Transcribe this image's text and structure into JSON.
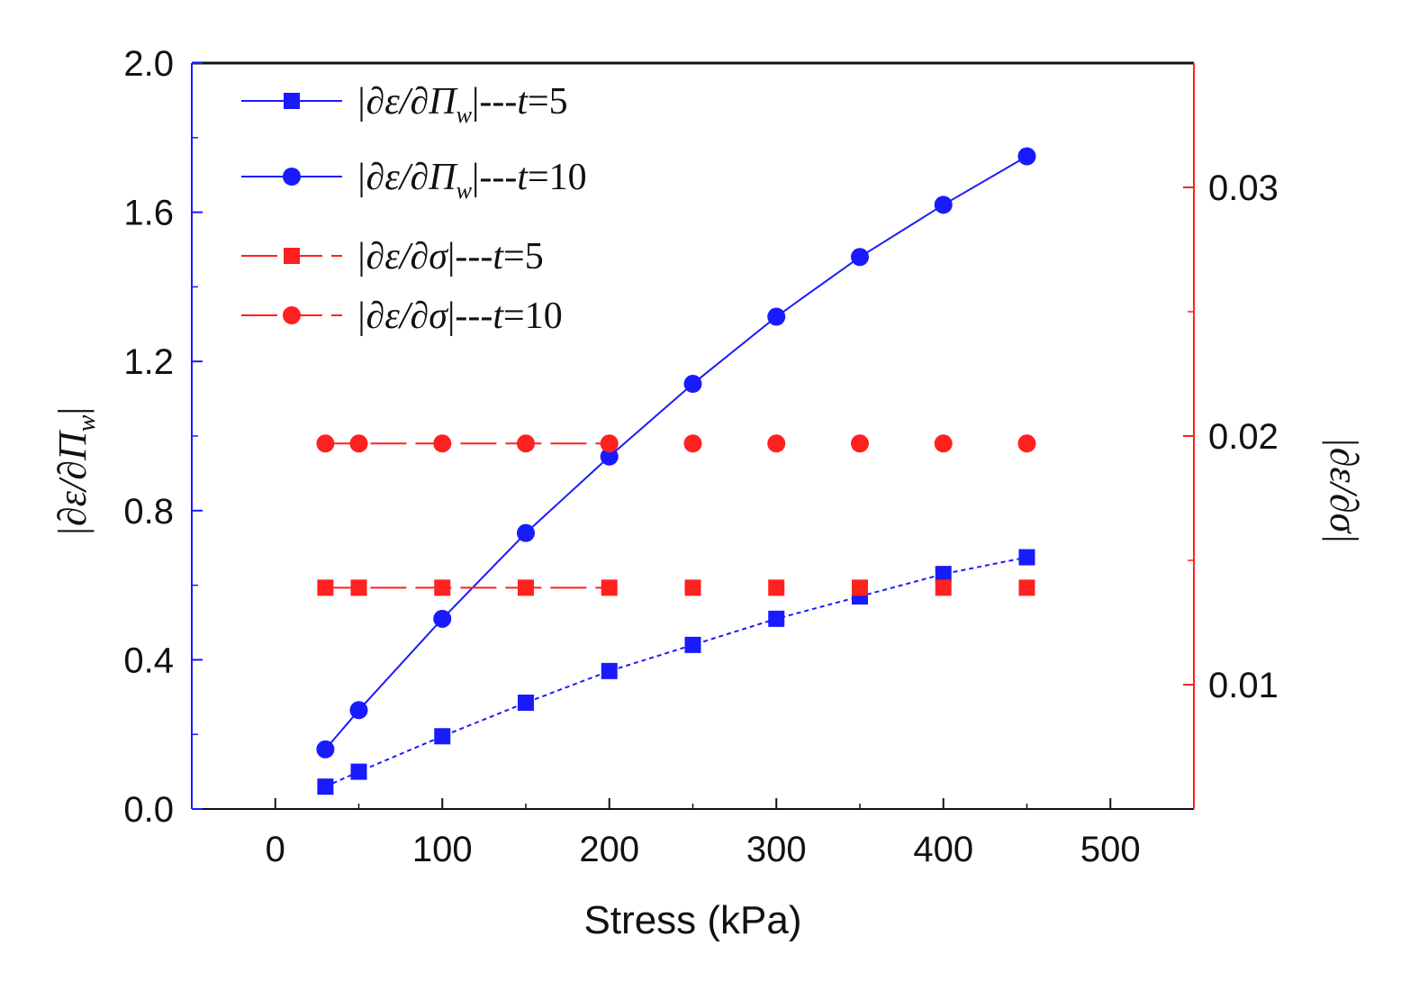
{
  "chart_data": {
    "type": "line",
    "x": [
      30,
      50,
      100,
      150,
      200,
      250,
      300,
      350,
      400,
      450
    ],
    "xlabel": "Stress (kPa)",
    "xlim": [
      -50,
      550
    ],
    "xticks": [
      0,
      100,
      200,
      300,
      400,
      500
    ],
    "xtick_labels": [
      "0",
      "100",
      "200",
      "300",
      "400",
      "500"
    ],
    "left_axis": {
      "label": "|∂ε/∂Π_w|",
      "label_main": "|∂ε/∂Π",
      "label_sub": "w",
      "label_end": "|",
      "ylim": [
        0,
        2.0
      ],
      "ticks": [
        0.0,
        0.4,
        0.8,
        1.2,
        1.6,
        2.0
      ],
      "tick_labels": [
        "0.0",
        "0.4",
        "0.8",
        "1.2",
        "1.6",
        "2.0"
      ],
      "color": "#1a1aff"
    },
    "right_axis": {
      "label": "|∂ε/∂σ|",
      "ylim": [
        0.005,
        0.035
      ],
      "ticks": [
        0.01,
        0.02,
        0.03
      ],
      "tick_labels": [
        "0.01",
        "0.02",
        "0.03"
      ],
      "color": "#ff2020"
    },
    "series": [
      {
        "name": "|∂ε/∂Π_w|---t=5",
        "legend_pre": "|∂ε/∂Π",
        "legend_sub": "w",
        "legend_mid": "|---",
        "legend_t": "t",
        "legend_post": "=5",
        "axis": "left",
        "marker": "square",
        "line": "dotted",
        "color": "#1a1aff",
        "values": [
          0.06,
          0.1,
          0.195,
          0.285,
          0.37,
          0.44,
          0.51,
          0.57,
          0.63,
          0.675
        ]
      },
      {
        "name": "|∂ε/∂Π_w|---t=10",
        "legend_pre": "|∂ε/∂Π",
        "legend_sub": "w",
        "legend_mid": "|---",
        "legend_t": "t",
        "legend_post": "=10",
        "axis": "left",
        "marker": "circle",
        "line": "solid",
        "color": "#1a1aff",
        "values": [
          0.16,
          0.265,
          0.51,
          0.74,
          0.945,
          1.14,
          1.32,
          1.48,
          1.62,
          1.75
        ]
      },
      {
        "name": "|∂ε/∂σ|---t=5",
        "legend_pre": "|∂ε/∂σ",
        "legend_sub": "",
        "legend_mid": "|---",
        "legend_t": "t",
        "legend_post": "=5",
        "axis": "right",
        "marker": "square",
        "line": "dash",
        "color": "#ff2020",
        "values": [
          0.0139,
          0.0139,
          0.0139,
          0.0139,
          0.0139,
          0.0139,
          0.0139,
          0.0139,
          0.0139,
          0.0139
        ]
      },
      {
        "name": "|∂ε/∂σ|---t=10",
        "legend_pre": "|∂ε/∂σ",
        "legend_sub": "",
        "legend_mid": "|---",
        "legend_t": "t",
        "legend_post": "=10",
        "axis": "right",
        "marker": "circle",
        "line": "dash",
        "color": "#ff2020",
        "values": [
          0.0197,
          0.0197,
          0.0197,
          0.0197,
          0.0197,
          0.0197,
          0.0197,
          0.0197,
          0.0197,
          0.0197
        ]
      }
    ],
    "legend_position": "top-left",
    "grid": false
  }
}
